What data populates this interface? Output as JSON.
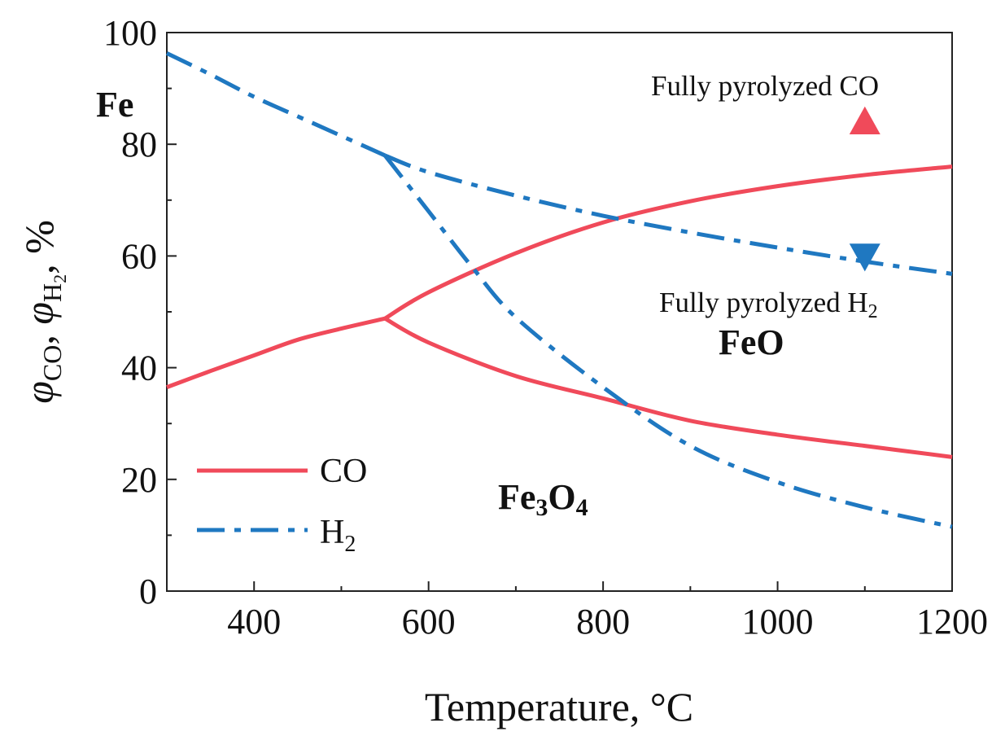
{
  "chart_data": {
    "type": "line",
    "xlabel": "Temperature, °C",
    "ylabel": {
      "phi": "φ",
      "co_sub": "CO",
      "sep1": ", ",
      "h_letter": "H",
      "h_sub": "2",
      "sep2": ", %"
    },
    "xlim": [
      300,
      1200
    ],
    "ylim": [
      0,
      100
    ],
    "x_ticks": [
      400,
      600,
      800,
      1000,
      1200
    ],
    "y_ticks": [
      0,
      20,
      40,
      60,
      80,
      100
    ],
    "series": [
      {
        "name": "CO",
        "color": "#f04a5a",
        "style": "solid",
        "segments": [
          {
            "label": "Fe3O4-Fe",
            "x": [
              300,
              350,
              400,
              450,
              500,
              550
            ],
            "y": [
              36.5,
              39.4,
              42.2,
              45.0,
              47.0,
              48.8
            ]
          },
          {
            "label": "FeO-Fe",
            "x": [
              550,
              600,
              700,
              800,
              900,
              1000,
              1100,
              1200
            ],
            "y": [
              48.8,
              53.5,
              60.5,
              66.0,
              69.8,
              72.5,
              74.5,
              76.0
            ]
          },
          {
            "label": "Fe3O4-FeO",
            "x": [
              550,
              600,
              700,
              800,
              900,
              1000,
              1100,
              1200
            ],
            "y": [
              48.8,
              44.5,
              38.5,
              34.5,
              30.5,
              28.0,
              26.0,
              24.0
            ]
          }
        ]
      },
      {
        "name": "H2",
        "color": "#1f78c1",
        "style": "dashdot",
        "segments": [
          {
            "label": "Fe3O4-Fe",
            "x": [
              300,
              350,
              400,
              450,
              500,
              550
            ],
            "y": [
              96.3,
              92.5,
              88.5,
              85.0,
              81.5,
              78.0
            ]
          },
          {
            "label": "FeO-Fe",
            "x": [
              550,
              600,
              700,
              800,
              900,
              1000,
              1100,
              1200
            ],
            "y": [
              78.0,
              75.0,
              70.8,
              67.2,
              64.2,
              61.5,
              59.0,
              56.8
            ]
          },
          {
            "label": "Fe3O4-FeO",
            "x": [
              550,
              600,
              650,
              700,
              800,
              900,
              1000,
              1100,
              1200
            ],
            "y": [
              78.0,
              68.0,
              58.0,
              49.0,
              36.5,
              26.0,
              19.5,
              15.0,
              11.5
            ]
          }
        ]
      }
    ],
    "markers": [
      {
        "name": "fully-pyrolyzed-co",
        "shape": "triangle-up",
        "color": "#f04a5a",
        "x": 1100,
        "y": 84
      },
      {
        "name": "fully-pyrolyzed-h2",
        "shape": "triangle-down",
        "color": "#1f78c1",
        "x": 1100,
        "y": 60
      }
    ],
    "legend": {
      "position": "bottom-left",
      "co_label": "CO",
      "h2_label": "H",
      "h2_sub": "2"
    }
  },
  "annotations": {
    "fe": "Fe",
    "feo": "FeO",
    "fe3o4": {
      "a": "Fe",
      "sub1": "3",
      "b": "O",
      "sub2": "4"
    },
    "fully_co": "Fully pyrolyzed CO",
    "fully_h2": {
      "text": "Fully pyrolyzed H",
      "sub": "2"
    }
  }
}
